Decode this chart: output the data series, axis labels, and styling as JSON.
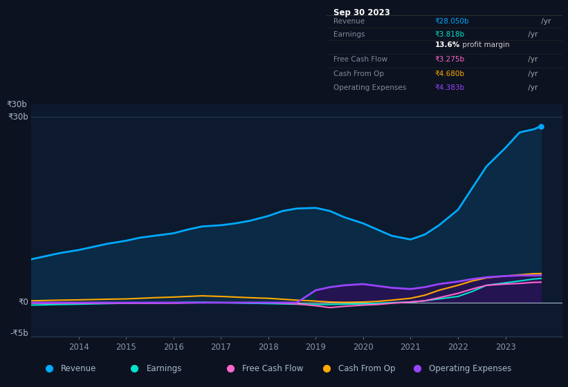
{
  "bg_color": "#0c1220",
  "plot_bg_color": "#0d1a2e",
  "grid_color": "#1e3048",
  "years": [
    2013.0,
    2013.3,
    2013.6,
    2014.0,
    2014.3,
    2014.6,
    2015.0,
    2015.3,
    2015.6,
    2016.0,
    2016.3,
    2016.6,
    2017.0,
    2017.3,
    2017.6,
    2018.0,
    2018.3,
    2018.6,
    2019.0,
    2019.3,
    2019.6,
    2020.0,
    2020.3,
    2020.6,
    2021.0,
    2021.3,
    2021.6,
    2022.0,
    2022.3,
    2022.6,
    2023.0,
    2023.3,
    2023.6,
    2023.75
  ],
  "revenue": [
    7.0,
    7.5,
    8.0,
    8.5,
    9.0,
    9.5,
    10.0,
    10.5,
    10.8,
    11.2,
    11.8,
    12.3,
    12.5,
    12.8,
    13.2,
    14.0,
    14.8,
    15.2,
    15.3,
    14.8,
    13.8,
    12.8,
    11.8,
    10.8,
    10.2,
    11.0,
    12.5,
    15.0,
    18.5,
    22.0,
    25.0,
    27.5,
    28.0,
    28.5
  ],
  "earnings": [
    -0.4,
    -0.35,
    -0.3,
    -0.25,
    -0.2,
    -0.15,
    -0.1,
    -0.05,
    -0.05,
    0.0,
    0.05,
    0.05,
    0.0,
    -0.05,
    -0.1,
    -0.15,
    -0.2,
    -0.25,
    -0.3,
    -0.3,
    -0.25,
    -0.2,
    -0.1,
    0.0,
    0.1,
    0.3,
    0.6,
    1.0,
    1.8,
    2.8,
    3.2,
    3.5,
    3.818,
    3.9
  ],
  "free_cash_flow": [
    -0.1,
    -0.1,
    -0.1,
    -0.1,
    -0.1,
    -0.1,
    -0.1,
    -0.1,
    -0.1,
    -0.1,
    -0.05,
    0.0,
    0.0,
    0.0,
    0.0,
    0.0,
    -0.1,
    -0.2,
    -0.5,
    -0.8,
    -0.6,
    -0.4,
    -0.3,
    -0.1,
    0.1,
    0.3,
    0.8,
    1.5,
    2.2,
    2.8,
    3.0,
    3.1,
    3.275,
    3.3
  ],
  "cash_from_op": [
    0.3,
    0.35,
    0.4,
    0.45,
    0.5,
    0.55,
    0.6,
    0.7,
    0.8,
    0.9,
    1.0,
    1.1,
    1.0,
    0.9,
    0.8,
    0.7,
    0.55,
    0.4,
    0.25,
    0.1,
    0.05,
    0.1,
    0.2,
    0.4,
    0.7,
    1.2,
    2.0,
    2.8,
    3.5,
    4.0,
    4.3,
    4.5,
    4.68,
    4.7
  ],
  "operating_expenses": [
    0.0,
    0.0,
    0.0,
    0.0,
    0.0,
    0.0,
    0.0,
    0.0,
    0.0,
    0.0,
    0.0,
    0.0,
    0.0,
    0.0,
    0.0,
    0.0,
    0.0,
    0.0,
    2.0,
    2.5,
    2.8,
    3.0,
    2.7,
    2.4,
    2.2,
    2.5,
    3.0,
    3.4,
    3.8,
    4.1,
    4.3,
    4.383,
    4.383,
    4.4
  ],
  "revenue_color": "#00aaff",
  "earnings_color": "#00e5cc",
  "fcf_color": "#ff66cc",
  "cash_op_color": "#ffaa00",
  "opex_color": "#9944ff",
  "revenue_fill": "#0a2a45",
  "opex_fill": "#2a1155",
  "ylim": [
    -5.5,
    32
  ],
  "ytick_labels": [
    "-₹5b",
    "₹0",
    "₹30b"
  ],
  "ytick_vals": [
    -5,
    0,
    30
  ],
  "xticks": [
    2014,
    2015,
    2016,
    2017,
    2018,
    2019,
    2020,
    2021,
    2022,
    2023
  ],
  "xlim": [
    2013.0,
    2024.2
  ],
  "legend_items": [
    {
      "label": "Revenue",
      "color": "#00aaff"
    },
    {
      "label": "Earnings",
      "color": "#00e5cc"
    },
    {
      "label": "Free Cash Flow",
      "color": "#ff66cc"
    },
    {
      "label": "Cash From Op",
      "color": "#ffaa00"
    },
    {
      "label": "Operating Expenses",
      "color": "#9944ff"
    }
  ],
  "info_box": {
    "date": "Sep 30 2023",
    "date_color": "#ffffff",
    "rows": [
      {
        "label": "Revenue",
        "label_color": "#888899",
        "value": "₹28.050b",
        "value_color": "#00aaff",
        "suffix": " /yr"
      },
      {
        "label": "Earnings",
        "label_color": "#888899",
        "value": "₹3.818b",
        "value_color": "#00e5cc",
        "suffix": " /yr"
      },
      {
        "label": "",
        "label_color": "",
        "value": "13.6%",
        "value_color": "#ffffff",
        "suffix": " profit margin",
        "bold": true
      },
      {
        "label": "Free Cash Flow",
        "label_color": "#888899",
        "value": "₹3.275b",
        "value_color": "#ff66cc",
        "suffix": " /yr"
      },
      {
        "label": "Cash From Op",
        "label_color": "#888899",
        "value": "₹4.680b",
        "value_color": "#ffaa00",
        "suffix": " /yr"
      },
      {
        "label": "Operating Expenses",
        "label_color": "#888899",
        "value": "₹4.383b",
        "value_color": "#9944ff",
        "suffix": " /yr"
      }
    ]
  }
}
